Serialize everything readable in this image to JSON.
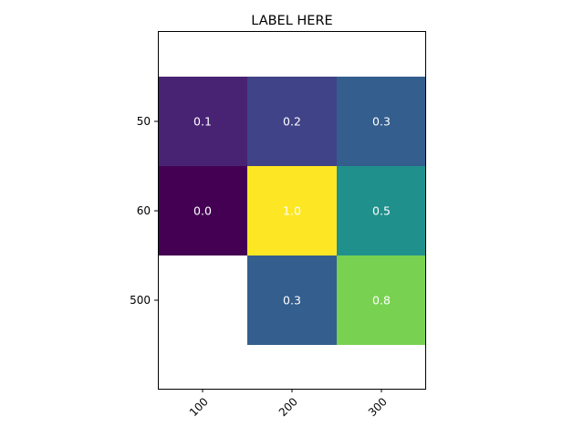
{
  "chart_data": {
    "type": "heatmap",
    "title": "LABEL HERE",
    "x_categories": [
      "100",
      "200",
      "300"
    ],
    "y_categories": [
      "50",
      "60",
      "500"
    ],
    "values": [
      [
        0.1,
        0.2,
        0.3
      ],
      [
        0.0,
        1.0,
        0.5
      ],
      [
        null,
        0.3,
        0.8
      ]
    ],
    "cell_labels": [
      [
        "0.1",
        "0.2",
        "0.3"
      ],
      [
        "0.0",
        "1.0",
        "0.5"
      ],
      [
        null,
        "0.3",
        "0.8"
      ]
    ],
    "colormap": "viridis",
    "color_range": [
      0,
      1
    ],
    "x_tick_rotation_deg": 45,
    "grid": false,
    "legend": "none"
  }
}
